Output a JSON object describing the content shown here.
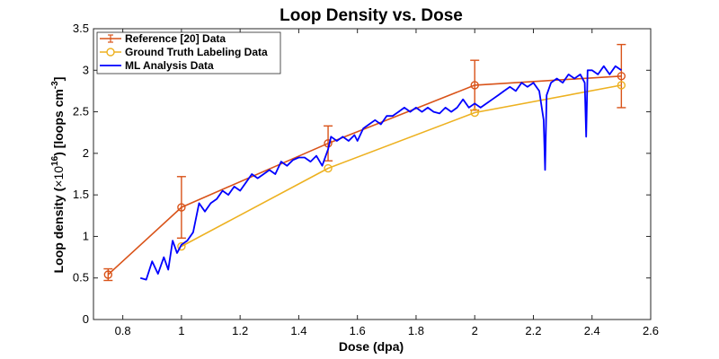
{
  "chart_data": {
    "type": "line",
    "title": "Loop Density vs. Dose",
    "xlabel": "Dose (dpa)",
    "ylabel": {
      "prefix": "Loop density (",
      "times": "×10",
      "exp1": "16",
      "mid": ") [loops cm",
      "exp2": "-3",
      "suffix": "]"
    },
    "xlim": [
      0.7,
      2.6
    ],
    "ylim": [
      0,
      3.5
    ],
    "xticks": [
      0.8,
      1,
      1.2,
      1.4,
      1.6,
      1.8,
      2,
      2.2,
      2.4,
      2.6
    ],
    "xtick_labels": [
      "0.8",
      "1",
      "1.2",
      "1.4",
      "1.6",
      "1.8",
      "2",
      "2.2",
      "2.4",
      "2.6"
    ],
    "yticks": [
      0,
      0.5,
      1,
      1.5,
      2,
      2.5,
      3,
      3.5
    ],
    "ytick_labels": [
      "0",
      "0.5",
      "1",
      "1.5",
      "2",
      "2.5",
      "3",
      "3.5"
    ],
    "legend_position": "top-left",
    "series": [
      {
        "name": "Reference [20] Data",
        "color": "#D95319",
        "style": "line-circle-errorbar",
        "x": [
          0.75,
          1.0,
          1.5,
          2.0,
          2.5
        ],
        "y": [
          0.54,
          1.35,
          2.12,
          2.82,
          2.93
        ],
        "err": [
          0.07,
          0.37,
          0.21,
          0.3,
          0.38
        ]
      },
      {
        "name": "Ground Truth Labeling Data",
        "color": "#EDB120",
        "style": "line-circle",
        "x": [
          1.0,
          1.5,
          2.0,
          2.5
        ],
        "y": [
          0.88,
          1.82,
          2.49,
          2.82
        ]
      },
      {
        "name": "ML Analysis Data",
        "color": "#0000FF",
        "style": "line",
        "x": [
          0.86,
          0.88,
          0.9,
          0.92,
          0.94,
          0.955,
          0.97,
          0.985,
          1.0,
          1.02,
          1.04,
          1.06,
          1.08,
          1.1,
          1.12,
          1.14,
          1.16,
          1.18,
          1.2,
          1.22,
          1.24,
          1.26,
          1.28,
          1.3,
          1.32,
          1.34,
          1.36,
          1.38,
          1.4,
          1.42,
          1.44,
          1.46,
          1.48,
          1.5,
          1.51,
          1.53,
          1.55,
          1.57,
          1.59,
          1.6,
          1.62,
          1.64,
          1.66,
          1.68,
          1.7,
          1.72,
          1.74,
          1.76,
          1.78,
          1.8,
          1.82,
          1.84,
          1.86,
          1.88,
          1.9,
          1.92,
          1.94,
          1.96,
          1.98,
          2.0,
          2.02,
          2.04,
          2.06,
          2.08,
          2.1,
          2.12,
          2.14,
          2.16,
          2.18,
          2.2,
          2.22,
          2.235,
          2.24,
          2.245,
          2.26,
          2.28,
          2.3,
          2.32,
          2.34,
          2.36,
          2.375,
          2.38,
          2.385,
          2.4,
          2.42,
          2.44,
          2.46,
          2.48,
          2.5
        ],
        "y": [
          0.5,
          0.48,
          0.7,
          0.55,
          0.75,
          0.6,
          0.95,
          0.8,
          0.9,
          0.95,
          1.05,
          1.4,
          1.3,
          1.4,
          1.45,
          1.55,
          1.5,
          1.6,
          1.55,
          1.65,
          1.75,
          1.7,
          1.75,
          1.8,
          1.75,
          1.9,
          1.85,
          1.92,
          1.95,
          1.95,
          1.9,
          1.97,
          1.85,
          2.05,
          2.2,
          2.15,
          2.2,
          2.15,
          2.22,
          2.15,
          2.3,
          2.35,
          2.4,
          2.35,
          2.45,
          2.45,
          2.5,
          2.55,
          2.5,
          2.55,
          2.5,
          2.55,
          2.5,
          2.48,
          2.55,
          2.5,
          2.55,
          2.65,
          2.55,
          2.6,
          2.55,
          2.6,
          2.65,
          2.7,
          2.75,
          2.8,
          2.75,
          2.85,
          2.8,
          2.85,
          2.75,
          2.4,
          1.8,
          2.7,
          2.85,
          2.9,
          2.85,
          2.95,
          2.9,
          2.95,
          2.85,
          2.2,
          3.0,
          3.0,
          2.95,
          3.05,
          2.95,
          3.05,
          3.0
        ]
      }
    ]
  }
}
